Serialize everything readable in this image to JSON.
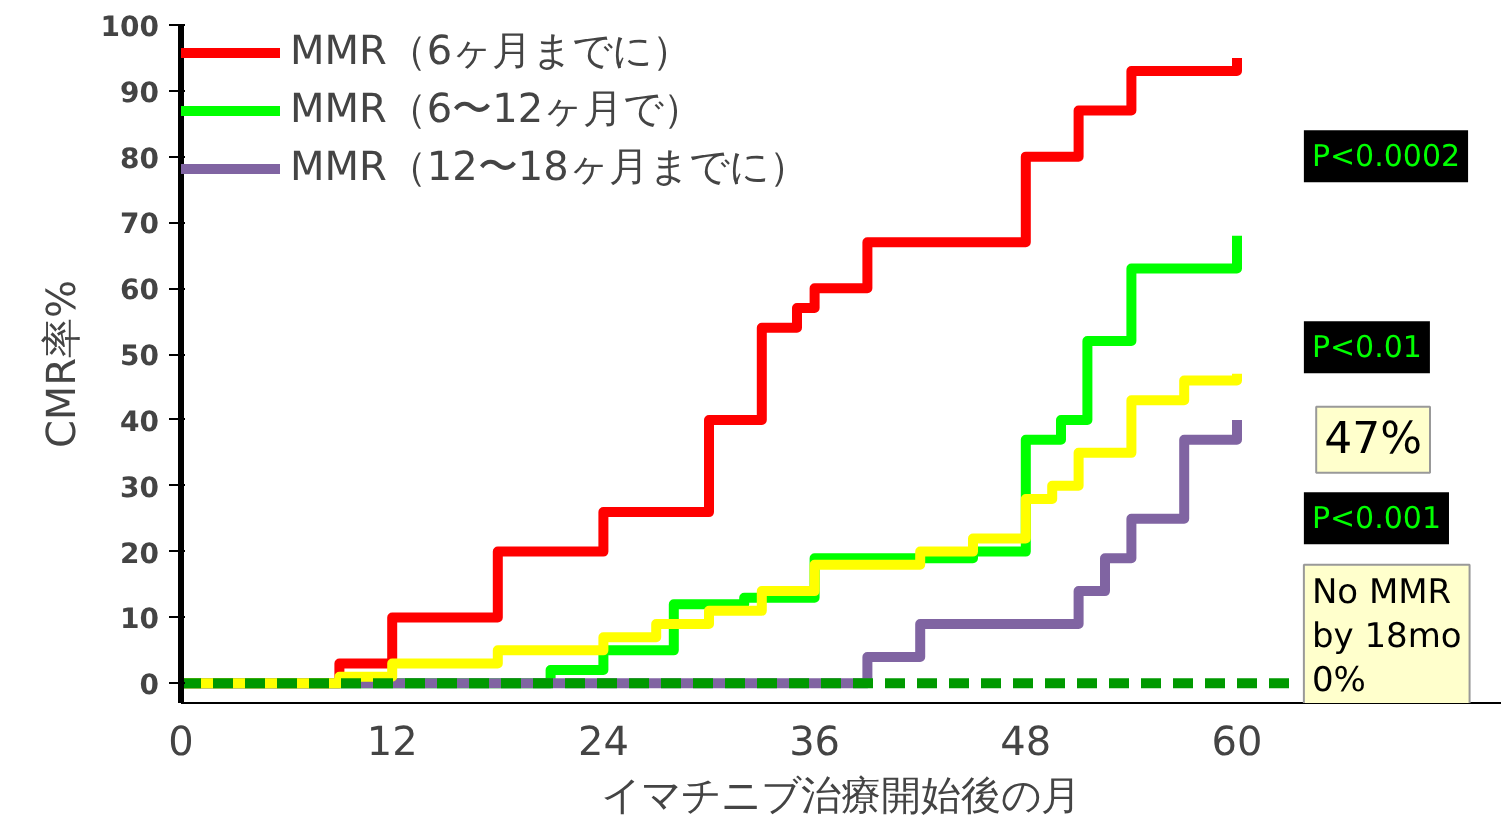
{
  "chart_data": {
    "type": "step",
    "xlabel": "イマチニブ治療開始後の月",
    "ylabel": "CMR率%",
    "xlim": [
      0,
      75
    ],
    "xticks": [
      0,
      12,
      24,
      36,
      48,
      60
    ],
    "ylim": [
      -3,
      100
    ],
    "yticks": [
      0,
      10,
      20,
      30,
      40,
      50,
      60,
      70,
      80,
      90,
      100
    ],
    "grid": false,
    "legend": "top left",
    "marker": "none",
    "series": [
      {
        "name": "MMR（6ヶ月までに）",
        "color": "#ff0000",
        "x": [
          0,
          9,
          12,
          18,
          24,
          30,
          33,
          35,
          36,
          39,
          48,
          51,
          54,
          60
        ],
        "values": [
          0,
          3,
          10,
          20,
          26,
          40,
          54,
          57,
          60,
          67,
          80,
          87,
          93,
          95
        ]
      },
      {
        "name": "MMR（6〜12ヶ月で）",
        "color": "#00ff00",
        "x": [
          0,
          21,
          24,
          28,
          32,
          36,
          45,
          48,
          50,
          51.5,
          54,
          60
        ],
        "values": [
          0,
          2,
          5,
          12,
          13,
          19,
          20,
          37,
          40,
          52,
          63,
          68
        ]
      },
      {
        "name": "MMR（12〜18ヶ月までに）",
        "color": "#8064a2",
        "x": [
          0,
          39,
          42,
          51,
          52.5,
          54,
          57,
          60
        ],
        "values": [
          0,
          4,
          9,
          14,
          19,
          25,
          37,
          40
        ]
      },
      {
        "color": "#ffff00",
        "x": [
          0,
          9,
          12,
          18,
          24,
          27,
          30,
          33,
          36,
          42,
          45,
          48,
          49.5,
          51,
          54,
          57,
          60
        ],
        "values": [
          0,
          1,
          3,
          5,
          7,
          9,
          11,
          14,
          18,
          20,
          22,
          28,
          30,
          35,
          43,
          46,
          47
        ]
      },
      {
        "color": "#009900",
        "line_style": "dashed",
        "x": [
          0,
          63
        ],
        "values": [
          0,
          0
        ]
      }
    ],
    "annotations": [
      "P<0.0002",
      "47%",
      "P<0.01",
      "P<0.001",
      "No MMR\nby 18mo\n0%"
    ]
  }
}
